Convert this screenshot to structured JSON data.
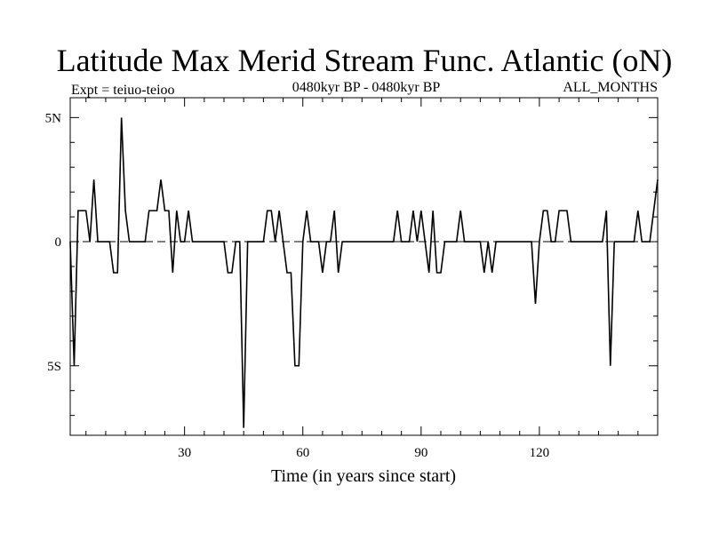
{
  "chart_data": {
    "type": "line",
    "title": "Latitude Max Merid Stream Func. Atlantic (oN)",
    "subtitle_left": "Expt = teiuo-teioo",
    "subtitle_center": "0480kyr BP - 0480kyr BP",
    "subtitle_right": "ALL_MONTHS",
    "xlabel": "Time (in years since start)",
    "ylabel": "",
    "xlim": [
      1,
      150
    ],
    "ylim": [
      -7.8,
      5.8
    ],
    "x_ticks": [
      30,
      60,
      90,
      120
    ],
    "x_tick_labels": [
      "30",
      "60",
      "90",
      "120"
    ],
    "y_ticks": [
      5,
      0,
      -5
    ],
    "y_tick_labels": [
      "5N",
      "0",
      "5S"
    ],
    "zero_line": true,
    "series": [
      {
        "name": "teiuo-teioo",
        "x": [
          1,
          2,
          3,
          4,
          5,
          6,
          7,
          8,
          9,
          10,
          11,
          12,
          13,
          14,
          15,
          16,
          17,
          18,
          19,
          20,
          21,
          22,
          23,
          24,
          25,
          26,
          27,
          28,
          29,
          30,
          31,
          32,
          33,
          34,
          35,
          36,
          37,
          38,
          39,
          40,
          41,
          42,
          43,
          44,
          45,
          46,
          47,
          48,
          49,
          50,
          51,
          52,
          53,
          54,
          55,
          56,
          57,
          58,
          59,
          60,
          61,
          62,
          63,
          64,
          65,
          66,
          67,
          68,
          69,
          70,
          71,
          72,
          73,
          74,
          75,
          76,
          77,
          78,
          79,
          80,
          81,
          82,
          83,
          84,
          85,
          86,
          87,
          88,
          89,
          90,
          91,
          92,
          93,
          94,
          95,
          96,
          97,
          98,
          99,
          100,
          101,
          102,
          103,
          104,
          105,
          106,
          107,
          108,
          109,
          110,
          111,
          112,
          113,
          114,
          115,
          116,
          117,
          118,
          119,
          120,
          121,
          122,
          123,
          124,
          125,
          126,
          127,
          128,
          129,
          130,
          131,
          132,
          133,
          134,
          135,
          136,
          137,
          138,
          139,
          140,
          141,
          142,
          143,
          144,
          145,
          146,
          147,
          148,
          149,
          150
        ],
        "values": [
          0,
          -5,
          1.25,
          1.25,
          1.25,
          0,
          2.5,
          0,
          0,
          0,
          0,
          -1.25,
          -1.25,
          5,
          1.25,
          0,
          0,
          0,
          0,
          0,
          1.25,
          1.25,
          1.25,
          2.5,
          1.25,
          1.25,
          -1.25,
          1.25,
          0,
          0,
          1.25,
          0,
          0,
          0,
          0,
          0,
          0,
          0,
          0,
          0,
          -1.25,
          -1.25,
          0,
          0,
          -7.5,
          0,
          0,
          0,
          0,
          0,
          1.25,
          1.25,
          0,
          1.25,
          0,
          -1.25,
          -1.25,
          -5,
          -5,
          0,
          1.25,
          0,
          0,
          0,
          -1.25,
          0,
          0,
          1.25,
          -1.25,
          0,
          0,
          0,
          0,
          0,
          0,
          0,
          0,
          0,
          0,
          0,
          0,
          0,
          0,
          1.25,
          0,
          0,
          0,
          1.25,
          0,
          1.25,
          0,
          -1.25,
          1.25,
          -1.25,
          -1.25,
          0,
          0,
          0,
          0,
          1.25,
          0,
          0,
          0,
          0,
          0,
          -1.25,
          0,
          -1.25,
          0,
          0,
          0,
          0,
          0,
          0,
          0,
          0,
          0,
          0,
          -2.5,
          0,
          1.25,
          1.25,
          0,
          0,
          1.25,
          1.25,
          1.25,
          0,
          0,
          0,
          0,
          0,
          0,
          0,
          0,
          0,
          1.25,
          -5,
          0,
          0,
          0,
          0,
          0,
          0,
          1.25,
          0,
          0,
          0,
          1.25,
          2.5
        ]
      }
    ]
  }
}
